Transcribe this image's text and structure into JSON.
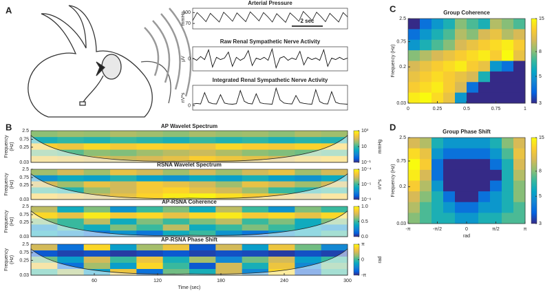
{
  "chart_data": [
    {
      "type": "line",
      "title": "Arterial Pressure",
      "ylabel": "mmHg",
      "color": "#222",
      "xlim": [
        0,
        10
      ],
      "ylim": [
        55,
        112
      ],
      "yticks": [
        70,
        100
      ],
      "values": [
        78,
        100,
        88,
        75,
        98,
        86,
        74,
        101,
        89,
        76,
        99,
        87,
        75,
        102,
        90,
        77,
        100,
        88,
        74,
        97,
        85,
        73,
        99,
        88,
        76,
        103,
        91,
        78,
        101,
        89,
        75,
        98,
        86,
        74,
        100,
        88
      ],
      "scalebar": {
        "length": 2,
        "label": "2 sec"
      }
    },
    {
      "type": "line",
      "title": "Raw Renal Sympathetic Nerve Activity",
      "ylabel": "μV",
      "color": "#111",
      "xlim": [
        0,
        10
      ],
      "ylim": [
        -1.6,
        1.6
      ],
      "yticks": [
        0
      ],
      "values": [
        0.1,
        -0.2,
        0.3,
        -0.1,
        1.2,
        -1.1,
        0.2,
        -0.1,
        0.1,
        0.9,
        -1.0,
        0.2,
        -0.2,
        0.1,
        1.1,
        -0.9,
        0.1,
        -0.1,
        0.2,
        -0.2,
        1.3,
        -1.2,
        0.1,
        0.3,
        -0.2,
        0.1,
        -0.1,
        1.0,
        -0.8,
        0.2,
        -0.1,
        0.1,
        -0.2,
        1.2,
        -1.0,
        0.1,
        -0.1,
        0.2,
        -0.1,
        0.1
      ]
    },
    {
      "type": "line",
      "title": "Integrated Renal Sympathetic Nerve Activity",
      "ylabel": "nV*s",
      "color": "#111",
      "xlim": [
        0,
        10
      ],
      "ylim": [
        -1.5,
        7
      ],
      "yticks": [
        0
      ],
      "values": [
        0.5,
        0.8,
        0.6,
        4.5,
        1.2,
        0.7,
        0.6,
        3.8,
        0.9,
        0.6,
        0.5,
        0.7,
        5.2,
        1.5,
        0.8,
        0.6,
        4.1,
        1,
        0.7,
        0.6,
        0.5,
        6,
        2,
        0.9,
        0.7,
        0.6,
        3.5,
        1.1,
        0.8,
        0.6,
        0.5,
        5.5,
        1.4,
        0.7,
        0.6,
        4.8,
        1.2,
        0.7,
        0.6,
        0.5
      ]
    },
    {
      "type": "heatmap",
      "title": "AP Wavelet Spectrum",
      "ylabel": [
        "Frequency",
        "(Hz)"
      ],
      "clabel": "mmHg",
      "log_y": true,
      "log_color": true,
      "cone": true,
      "xlim": [
        0,
        300
      ],
      "ylim": [
        0.03,
        2.5
      ],
      "yticks": [
        2.5,
        0.75,
        0.25,
        0.03
      ],
      "clim": [
        0.1,
        1000
      ],
      "cticks": [
        {
          "value": 1000,
          "label": "10³"
        },
        10,
        {
          "value": 0.1,
          "label": "10⁻¹"
        }
      ],
      "z": [
        [
          30,
          40,
          35,
          50,
          40,
          30,
          45,
          35,
          40,
          30,
          50,
          40
        ],
        [
          5,
          8,
          6,
          10,
          7,
          5,
          9,
          6,
          8,
          5,
          7,
          6
        ],
        [
          300,
          200,
          400,
          250,
          350,
          300,
          200,
          400,
          300,
          250,
          350,
          300
        ],
        [
          20,
          15,
          30,
          25,
          40,
          60,
          80,
          50,
          30,
          25,
          20,
          15
        ],
        [
          200,
          150,
          100,
          80,
          100,
          150,
          300,
          200,
          150,
          100,
          200,
          300
        ]
      ]
    },
    {
      "type": "heatmap",
      "title": "RSNA Wavelet Spectrum",
      "ylabel": [
        "Frequency",
        "(Hz)"
      ],
      "clabel": "nV*s",
      "log_y": true,
      "log_color": true,
      "cone": true,
      "xlim": [
        0,
        300
      ],
      "ylim": [
        0.03,
        2.5
      ],
      "yticks": [
        2.5,
        0.75,
        0.25,
        0.03
      ],
      "clim": [
        1e-06,
        0.0001
      ],
      "cticks": [
        {
          "value": 0.0001,
          "label": "10⁻⁴"
        },
        {
          "value": 1e-05,
          "label": "10⁻⁵"
        },
        {
          "value": 1e-06,
          "label": "10⁻⁶"
        }
      ],
      "z": [
        [
          2e-05,
          3e-05,
          2e-05,
          4e-05,
          3e-05,
          2e-05,
          3e-05,
          2e-05,
          3e-05,
          4e-05,
          2e-05,
          3e-05
        ],
        [
          4e-06,
          6e-06,
          5e-06,
          8e-06,
          5e-06,
          4e-06,
          6e-06,
          5e-06,
          7e-06,
          5e-06,
          4e-06,
          6e-06
        ],
        [
          3e-05,
          2e-05,
          4e-05,
          3e-05,
          5e-05,
          4e-05,
          3e-05,
          2e-05,
          4e-05,
          3e-05,
          2e-05,
          3e-05
        ],
        [
          1e-05,
          8e-06,
          2e-05,
          3e-05,
          5e-05,
          6e-05,
          4e-05,
          3e-05,
          2e-05,
          1e-05,
          8e-06,
          1e-05
        ],
        [
          5e-05,
          4e-05,
          3e-05,
          4e-05,
          6e-05,
          8e-05,
          9e-05,
          7e-05,
          5e-05,
          4e-05,
          3e-05,
          5e-05
        ]
      ]
    },
    {
      "type": "heatmap",
      "title": "AP-RSNA Coherence",
      "ylabel": [
        "Frequency",
        "(Hz)"
      ],
      "log_y": true,
      "log_color": false,
      "cone": true,
      "xlim": [
        0,
        300
      ],
      "ylim": [
        0.03,
        2.5
      ],
      "yticks": [
        2.5,
        0.75,
        0.25,
        0.03
      ],
      "clim": [
        0,
        1
      ],
      "cticks": [
        {
          "value": 1,
          "label": "1.0"
        },
        0.5,
        {
          "value": 0,
          "label": "0.0"
        }
      ],
      "z": [
        [
          0.7,
          0.4,
          0.6,
          0.3,
          0.5,
          0.6,
          0.4,
          0.7,
          0.5,
          0.3,
          0.6,
          0.5
        ],
        [
          0.9,
          0.8,
          0.95,
          0.85,
          0.9,
          0.8,
          0.9,
          0.95,
          0.85,
          0.9,
          0.8,
          0.9
        ],
        [
          0.6,
          0.5,
          0.7,
          0.4,
          0.6,
          0.5,
          0.6,
          0.7,
          0.5,
          0.6,
          0.4,
          0.6
        ],
        [
          0.3,
          0.5,
          0.4,
          0.6,
          0.5,
          0.7,
          0.4,
          0.5,
          0.6,
          0.5,
          0.4,
          0.3
        ],
        [
          0.4,
          0.3,
          0.2,
          0.3,
          0.2,
          0.4,
          0.5,
          0.3,
          0.2,
          0.3,
          0.4,
          0.5
        ]
      ]
    },
    {
      "type": "heatmap",
      "title": "AP-RSNA Phase Shift",
      "ylabel": [
        "Frequency",
        "(Hz)"
      ],
      "clabel": "rad",
      "xlabel": "Time (sec)",
      "log_y": true,
      "log_color": false,
      "cone": true,
      "xlim": [
        0,
        300
      ],
      "xticks": [
        60,
        120,
        180,
        240,
        300
      ],
      "ylim": [
        0.03,
        2.5
      ],
      "yticks": [
        2.5,
        0.75,
        0.25,
        0.03
      ],
      "clim": [
        -3.14159,
        3.14159
      ],
      "cticks": [
        {
          "value": 3.14159,
          "label": "π"
        },
        0,
        {
          "value": -3.14159,
          "label": "-π"
        }
      ],
      "z": [
        [
          1.5,
          -2,
          2.5,
          -1,
          1,
          2,
          -2.5,
          1.5,
          -1,
          2,
          0.5,
          -1.5
        ],
        [
          -2.5,
          -2.8,
          -2.6,
          -2.9,
          -2.7,
          -2.5,
          -2.8,
          -2.6,
          -2.7,
          -2.9,
          -2.6,
          -2.8
        ],
        [
          0.5,
          -1,
          1.5,
          0,
          2,
          -0.5,
          1,
          -1.5,
          0.5,
          1.5,
          -1,
          0
        ],
        [
          2,
          -2,
          1,
          -1,
          2.5,
          0,
          -2.5,
          1.5,
          -0.5,
          2,
          -1.5,
          0.5
        ],
        [
          0,
          1,
          -1,
          2,
          -2,
          0.5,
          -0.5,
          1.5,
          -1.5,
          2.5,
          -2.5,
          0
        ]
      ]
    },
    {
      "type": "heatmap",
      "title": "Group Coherence",
      "ylabel": "Frequency (Hz)",
      "clabel": "Occurence (%)",
      "log_y": true,
      "log_color": true,
      "xlim": [
        0,
        1
      ],
      "xticks": [
        0,
        0.25,
        0.5,
        0.75,
        1
      ],
      "ylim": [
        0.03,
        2.5
      ],
      "yticks": [
        2.5,
        0.75,
        0.2,
        0.03
      ],
      "clim": [
        3,
        15
      ],
      "cticks": [
        15,
        8,
        5,
        3
      ],
      "z": [
        [
          3,
          4,
          5,
          6,
          8,
          7,
          6,
          9,
          8,
          7
        ],
        [
          4,
          5,
          6,
          7,
          9,
          8,
          10,
          11,
          9,
          10
        ],
        [
          5,
          6,
          7,
          8,
          10,
          11,
          12,
          13,
          14,
          12
        ],
        [
          8,
          9,
          10,
          11,
          12,
          13,
          14,
          12,
          15,
          11
        ],
        [
          10,
          11,
          12,
          13,
          14,
          12,
          11,
          5,
          4,
          3
        ],
        [
          11,
          12,
          13,
          12,
          11,
          10,
          6,
          3,
          3,
          3
        ],
        [
          12,
          13,
          14,
          12,
          10,
          4,
          3,
          3,
          3,
          3
        ],
        [
          14,
          15,
          13,
          11,
          5,
          3,
          3,
          3,
          3,
          3
        ]
      ]
    },
    {
      "type": "heatmap",
      "title": "Group Phase Shift",
      "ylabel": "Frequency (Hz)",
      "xlabel": "rad",
      "clabel": "Occurence (%)",
      "log_y": true,
      "log_color": true,
      "xlim": [
        -3.14159,
        3.14159
      ],
      "xticks": [
        {
          "value": -3.14159,
          "label": "-π"
        },
        {
          "value": -1.5708,
          "label": "-π/2"
        },
        0,
        {
          "value": 1.5708,
          "label": "π/2"
        },
        {
          "value": 3.14159,
          "label": "π"
        }
      ],
      "ylim": [
        0.03,
        2.5
      ],
      "yticks": [
        2.5,
        0.75,
        0.2,
        0.03
      ],
      "clim": [
        3,
        15
      ],
      "cticks": [
        15,
        8,
        5,
        3
      ],
      "z": [
        [
          10,
          9,
          6,
          5,
          5,
          5,
          5,
          6,
          8,
          10
        ],
        [
          13,
          11,
          5,
          4,
          4,
          4,
          4,
          5,
          7,
          11
        ],
        [
          15,
          12,
          4,
          3,
          3,
          3,
          3,
          4,
          6,
          10
        ],
        [
          14,
          10,
          4,
          3,
          3,
          3,
          3,
          3,
          6,
          9
        ],
        [
          12,
          9,
          5,
          3,
          3,
          3,
          3,
          4,
          6,
          8
        ],
        [
          10,
          8,
          6,
          4,
          3,
          3,
          4,
          5,
          6,
          8
        ],
        [
          9,
          7,
          6,
          5,
          4,
          4,
          5,
          5,
          6,
          7
        ],
        [
          8,
          7,
          6,
          6,
          5,
          5,
          6,
          6,
          7,
          7
        ]
      ]
    }
  ],
  "panel_labels": [
    "A",
    "B",
    "C",
    "D"
  ],
  "colormap": [
    "#352a87",
    "#0363e1",
    "#1485d4",
    "#06a7c6",
    "#38b99e",
    "#92bf73",
    "#d9ba56",
    "#fcce2e",
    "#f9fb0e"
  ]
}
